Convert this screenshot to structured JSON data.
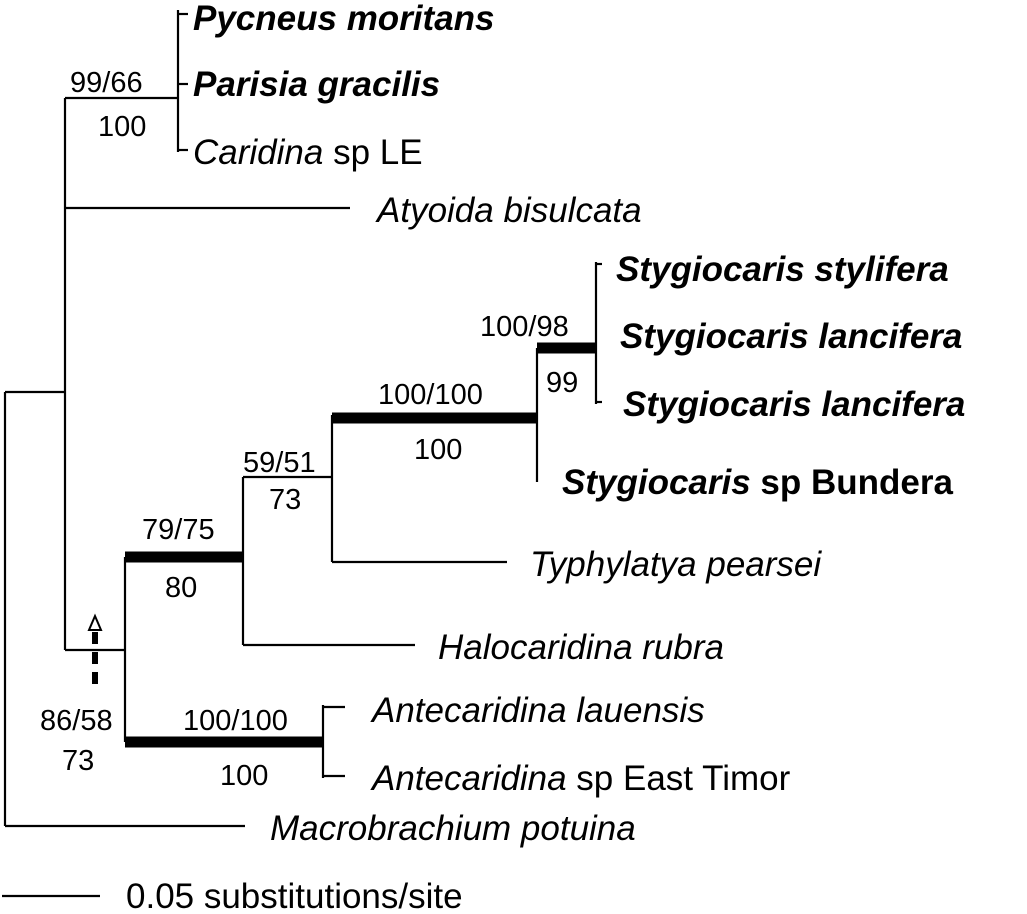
{
  "taxa": {
    "pycneus": {
      "genus": "Pycneus moritans",
      "rest": ""
    },
    "parisia": {
      "genus": "Parisia gracilis",
      "rest": ""
    },
    "caridina": {
      "genus": "Caridina",
      "rest": " sp LE"
    },
    "atyoida": {
      "genus": "Atyoida bisulcata",
      "rest": ""
    },
    "stylifera": {
      "genus": "Stygiocaris stylifera",
      "rest": ""
    },
    "lancifera1": {
      "genus": "Stygiocaris lancifera",
      "rest": ""
    },
    "lancifera2": {
      "genus": "Stygiocaris lancifera",
      "rest": ""
    },
    "bundera": {
      "genus": "Stygiocaris",
      "rest": " sp Bundera"
    },
    "typhlatya": {
      "genus": "Typhylatya pearsei",
      "rest": ""
    },
    "halocaridina": {
      "genus": "Halocaridina rubra",
      "rest": ""
    },
    "ant_lauensis": {
      "genus": "Antecaridina lauensis",
      "rest": ""
    },
    "ant_eastTimor": {
      "genus": "Antecaridina",
      "rest": " sp East Timor"
    },
    "macrobrachium": {
      "genus": "Macrobrachium potuina",
      "rest": ""
    }
  },
  "support": {
    "caridina_clade": {
      "top": "99/66",
      "bottom": "100"
    },
    "stygio_inner": {
      "top": "100/98",
      "bottom": "99"
    },
    "stygio_clade": {
      "top": "100/100",
      "bottom": "100"
    },
    "typhlatya_clade": {
      "top": "59/51",
      "bottom": "73"
    },
    "halocaridina_clade": {
      "top": "79/75",
      "bottom": "80"
    },
    "antecaridina": {
      "top": "100/100",
      "bottom": "100"
    },
    "anchialine": {
      "top": "86/58",
      "bottom": "73"
    }
  },
  "scale_bar": {
    "label": "0.05 substitutions/site"
  }
}
